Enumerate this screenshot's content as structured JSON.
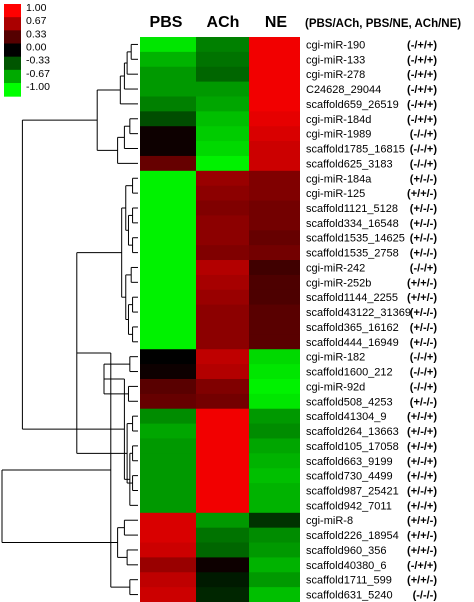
{
  "chart_data": {
    "type": "heatmap",
    "columns": [
      "PBS",
      "ACh",
      "NE"
    ],
    "legend_header": "(PBS/ACh, PBS/NE, ACh/NE)",
    "color_scale": {
      "ticks": [
        "1.00",
        "0.67",
        "0.33",
        "0.00",
        "-0.33",
        "-0.67",
        "-1.00"
      ],
      "min": -1.0,
      "max": 1.0,
      "colors": {
        "high": "#ff0000",
        "mid": "#000000",
        "low": "#00ff00"
      }
    },
    "rows": [
      {
        "name": "cgi-miR-190",
        "sig": "(-/+/+)",
        "values": [
          -0.9,
          -0.5,
          0.95
        ]
      },
      {
        "name": "cgi-miR-133",
        "sig": "(-/+/+)",
        "values": [
          -0.7,
          -0.45,
          0.95
        ]
      },
      {
        "name": "cgi-miR-278",
        "sig": "(-/+/+)",
        "values": [
          -0.6,
          -0.4,
          0.95
        ]
      },
      {
        "name": "C24628_29044",
        "sig": "(-/+/+)",
        "values": [
          -0.6,
          -0.6,
          0.95
        ]
      },
      {
        "name": "scaffold659_26519",
        "sig": "(-/+/+)",
        "values": [
          -0.5,
          -0.65,
          0.95
        ]
      },
      {
        "name": "cgi-miR-184d",
        "sig": "(-/+/+)",
        "values": [
          -0.3,
          -0.75,
          0.9
        ]
      },
      {
        "name": "cgi-miR-1989",
        "sig": "(-/-/+)",
        "values": [
          0.05,
          -0.8,
          0.85
        ]
      },
      {
        "name": "scaffold1785_16815",
        "sig": "(-/-/+)",
        "values": [
          0.05,
          -0.85,
          0.8
        ]
      },
      {
        "name": "scaffold625_3183",
        "sig": "(-/-/+)",
        "values": [
          0.4,
          -0.95,
          0.8
        ]
      },
      {
        "name": "cgi-miR-184a",
        "sig": "(+/-/-)",
        "values": [
          -0.95,
          0.6,
          0.5
        ]
      },
      {
        "name": "cgi-miR-125",
        "sig": "(+/+/-)",
        "values": [
          -0.95,
          0.55,
          0.5
        ]
      },
      {
        "name": "scaffold1121_5128",
        "sig": "(+/-/-)",
        "values": [
          -0.95,
          0.5,
          0.45
        ]
      },
      {
        "name": "scaffold334_16548",
        "sig": "(+/-/-)",
        "values": [
          -0.95,
          0.55,
          0.45
        ]
      },
      {
        "name": "scaffold1535_14625",
        "sig": "(+/-/-)",
        "values": [
          -0.95,
          0.55,
          0.4
        ]
      },
      {
        "name": "scaffold1535_2758",
        "sig": "(+/-/-)",
        "values": [
          -0.95,
          0.5,
          0.45
        ]
      },
      {
        "name": "cgi-miR-242",
        "sig": "(-/-/+)",
        "values": [
          -0.95,
          0.7,
          0.25
        ]
      },
      {
        "name": "cgi-miR-252b",
        "sig": "(+/+/-)",
        "values": [
          -0.95,
          0.65,
          0.3
        ]
      },
      {
        "name": "scaffold1144_2255",
        "sig": "(+/+/-)",
        "values": [
          -0.95,
          0.6,
          0.3
        ]
      },
      {
        "name": "scaffold43122_31369",
        "sig": "(+/-/-)",
        "values": [
          -0.95,
          0.55,
          0.35
        ]
      },
      {
        "name": "scaffold365_16162",
        "sig": "(+/-/-)",
        "values": [
          -0.95,
          0.55,
          0.35
        ]
      },
      {
        "name": "scaffold444_16949",
        "sig": "(+/-/-)",
        "values": [
          -0.95,
          0.55,
          0.35
        ]
      },
      {
        "name": "cgi-miR-182",
        "sig": "(-/-/+)",
        "values": [
          0.0,
          0.75,
          -0.85
        ]
      },
      {
        "name": "scaffold1600_212",
        "sig": "(-/-/+)",
        "values": [
          0.05,
          0.7,
          -0.9
        ]
      },
      {
        "name": "cgi-miR-92d",
        "sig": "(-/-/+)",
        "values": [
          0.35,
          0.5,
          -0.95
        ]
      },
      {
        "name": "scaffold508_4253",
        "sig": "(+/-/-)",
        "values": [
          0.4,
          0.45,
          -0.9
        ]
      },
      {
        "name": "scaffold41304_9",
        "sig": "(+/-/+)",
        "values": [
          -0.55,
          0.95,
          -0.6
        ]
      },
      {
        "name": "scaffold264_13663",
        "sig": "(+/-/+)",
        "values": [
          -0.65,
          0.95,
          -0.55
        ]
      },
      {
        "name": "scaffold105_17058",
        "sig": "(+/-/+)",
        "values": [
          -0.6,
          0.95,
          -0.65
        ]
      },
      {
        "name": "scaffold663_9199",
        "sig": "(+/-/+)",
        "values": [
          -0.6,
          0.95,
          -0.7
        ]
      },
      {
        "name": "scaffold730_4499",
        "sig": "(+/-/+)",
        "values": [
          -0.6,
          0.95,
          -0.75
        ]
      },
      {
        "name": "scaffold987_25421",
        "sig": "(+/-/+)",
        "values": [
          -0.6,
          0.95,
          -0.7
        ]
      },
      {
        "name": "scaffold942_7011",
        "sig": "(+/-/+)",
        "values": [
          -0.6,
          0.95,
          -0.7
        ]
      },
      {
        "name": "cgi-miR-8",
        "sig": "(+/+/-)",
        "values": [
          0.85,
          -0.6,
          -0.2
        ]
      },
      {
        "name": "scaffold226_18954",
        "sig": "(+/+/-)",
        "values": [
          0.85,
          -0.45,
          -0.55
        ]
      },
      {
        "name": "scaffold960_356",
        "sig": "(+/+/-)",
        "values": [
          0.8,
          -0.4,
          -0.6
        ]
      },
      {
        "name": "scaffold40380_6",
        "sig": "(-/+/+)",
        "values": [
          0.6,
          0.05,
          -0.7
        ]
      },
      {
        "name": "scaffold1711_599",
        "sig": "(+/+/-)",
        "values": [
          0.75,
          -0.1,
          -0.6
        ]
      },
      {
        "name": "scaffold631_5240",
        "sig": "(-/-/-)",
        "values": [
          0.8,
          -0.15,
          -0.75
        ]
      }
    ],
    "dendrogram": {
      "merges": [
        [
          0,
          1
        ],
        [
          2,
          38
        ],
        [
          39,
          3
        ],
        [
          40,
          4
        ],
        [
          5,
          6
        ],
        [
          42,
          7
        ],
        [
          43,
          8
        ],
        [
          41,
          44
        ],
        [
          9,
          10
        ],
        [
          11,
          12
        ],
        [
          13,
          14
        ],
        [
          47,
          48
        ],
        [
          46,
          49
        ],
        [
          15,
          16
        ],
        [
          17,
          18
        ],
        [
          19,
          20
        ],
        [
          52,
          53
        ],
        [
          51,
          54
        ],
        [
          50,
          55
        ],
        [
          21,
          22
        ],
        [
          23,
          24
        ],
        [
          57,
          58
        ],
        [
          25,
          26
        ],
        [
          27,
          28
        ],
        [
          29,
          30
        ],
        [
          61,
          31
        ],
        [
          60,
          62
        ],
        [
          63,
          59
        ],
        [
          56,
          64
        ],
        [
          32,
          33
        ],
        [
          34,
          35
        ],
        [
          36,
          37
        ],
        [
          67,
          68
        ],
        [
          66,
          69
        ],
        [
          45,
          65
        ],
        [
          71,
          70
        ]
      ],
      "heights": [
        0.05,
        0.08,
        0.1,
        0.13,
        0.06,
        0.1,
        0.15,
        0.3,
        0.04,
        0.04,
        0.04,
        0.07,
        0.09,
        0.05,
        0.04,
        0.04,
        0.07,
        0.09,
        0.12,
        0.06,
        0.07,
        0.25,
        0.04,
        0.04,
        0.04,
        0.06,
        0.08,
        0.1,
        0.45,
        0.1,
        0.08,
        0.06,
        0.15,
        0.2,
        0.85,
        1.0
      ]
    }
  }
}
